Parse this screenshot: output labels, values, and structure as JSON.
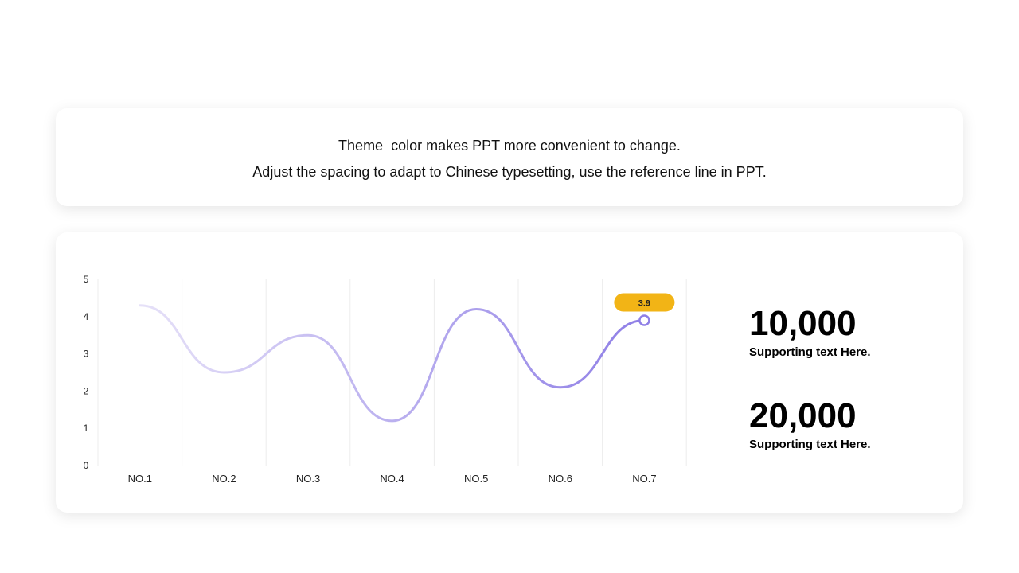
{
  "header": {
    "line1": "Theme  color makes PPT more convenient to change.",
    "line2": "Adjust the spacing to adapt to Chinese typesetting, use the reference line in PPT."
  },
  "chart_data": {
    "type": "line",
    "categories": [
      "NO.1",
      "NO.2",
      "NO.3",
      "NO.4",
      "NO.5",
      "NO.6",
      "NO.7"
    ],
    "series": [
      {
        "values": [
          4.3,
          2.5,
          3.5,
          1.2,
          4.2,
          2.1,
          3.9
        ]
      }
    ],
    "ylim": [
      0,
      5
    ],
    "yticks": [
      0,
      1,
      2,
      3,
      4,
      5
    ],
    "callout": {
      "category": "NO.7",
      "label": "3.9"
    },
    "grid": "vertical",
    "colors": {
      "line_start": "#e6e1f8",
      "line_end": "#8f7fe6",
      "callout_bg": "#f2b416",
      "grid": "#ececec"
    }
  },
  "stats": [
    {
      "value": "10,000",
      "caption": "Supporting text Here."
    },
    {
      "value": "20,000",
      "caption": "Supporting text Here."
    }
  ]
}
